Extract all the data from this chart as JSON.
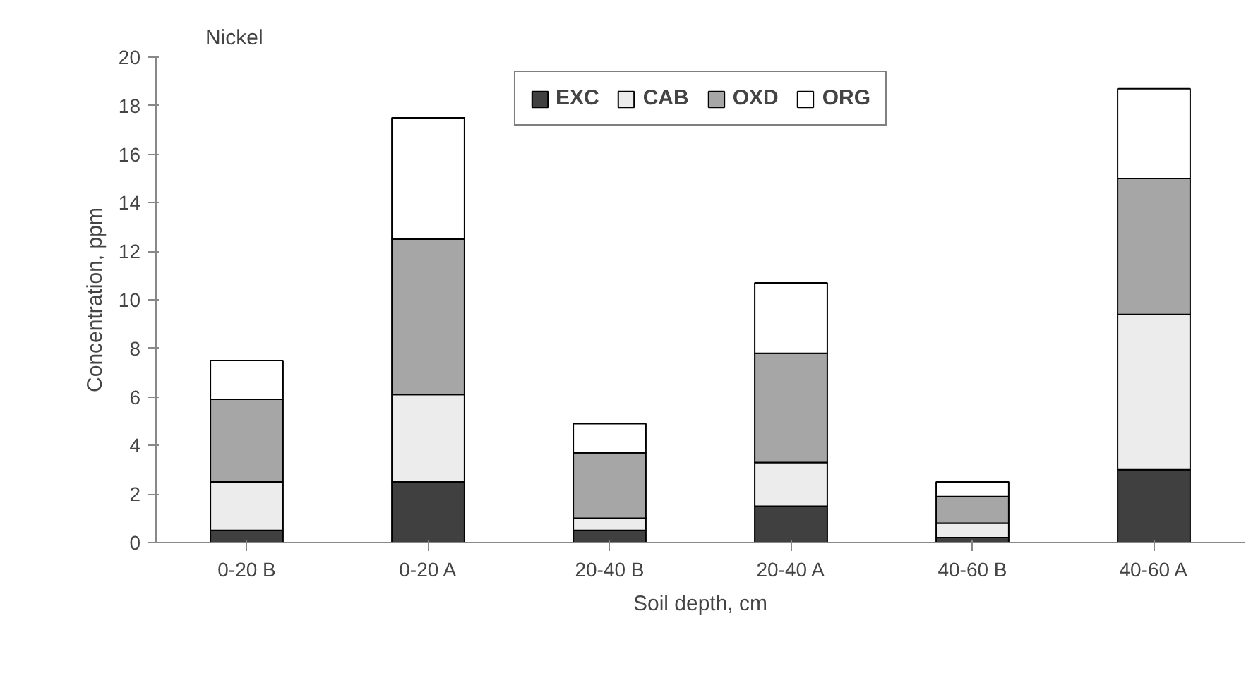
{
  "chart_data": {
    "type": "bar",
    "title": "Nickel",
    "xlabel": "Soil depth, cm",
    "ylabel": "Concentration, ppm",
    "categories": [
      "0-20 B",
      "0-20 A",
      "20-40 B",
      "20-40 A",
      "40-60 B",
      "40-60 A"
    ],
    "stacked": true,
    "series": [
      {
        "name": "EXC",
        "color": "#404040",
        "values": [
          0.5,
          2.5,
          0.5,
          1.5,
          0.2,
          3.0
        ]
      },
      {
        "name": "CAB",
        "color": "#ececec",
        "values": [
          2.0,
          3.6,
          0.5,
          1.8,
          0.6,
          6.4
        ]
      },
      {
        "name": "OXD",
        "color": "#a6a6a6",
        "values": [
          3.4,
          6.4,
          2.7,
          4.5,
          1.1,
          5.6
        ]
      },
      {
        "name": "ORG",
        "color": "#ffffff",
        "values": [
          1.6,
          5.0,
          1.2,
          2.9,
          0.6,
          3.7
        ]
      }
    ],
    "ylim": [
      0,
      20
    ],
    "yticks": [
      0,
      2,
      4,
      6,
      8,
      10,
      12,
      14,
      16,
      18,
      20
    ],
    "grid": false,
    "legend": "top"
  }
}
